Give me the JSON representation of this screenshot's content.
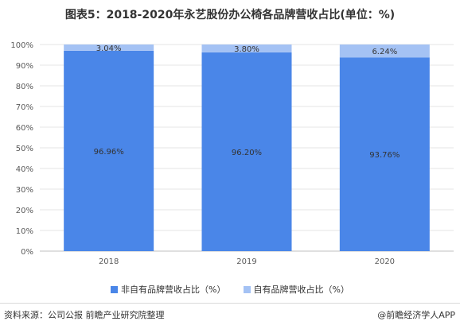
{
  "chart_data": {
    "type": "bar",
    "stacked": true,
    "title": "图表5：2018-2020年永艺股份办公椅各品牌营收占比(单位：%)",
    "categories": [
      "2018",
      "2019",
      "2020"
    ],
    "series": [
      {
        "name": "非自有品牌营收占比（%）",
        "values": [
          96.96,
          96.2,
          93.76
        ],
        "labels": [
          "96.96%",
          "96.20%",
          "93.76%"
        ],
        "color": "#4a86e8"
      },
      {
        "name": "自有品牌营收占比（%）",
        "values": [
          3.04,
          3.8,
          6.24
        ],
        "labels": [
          "3.04%",
          "3.80%",
          "6.24%"
        ],
        "color": "#a4c2f4"
      }
    ],
    "ylim": [
      0,
      100
    ],
    "yticks": [
      "0%",
      "10%",
      "20%",
      "30%",
      "40%",
      "50%",
      "60%",
      "70%",
      "80%",
      "90%",
      "100%"
    ],
    "grid": true,
    "legend_position": "bottom"
  },
  "footer": {
    "source": "资料来源：公司公报 前瞻产业研究院整理",
    "credit": "@前瞻经济学人APP"
  }
}
